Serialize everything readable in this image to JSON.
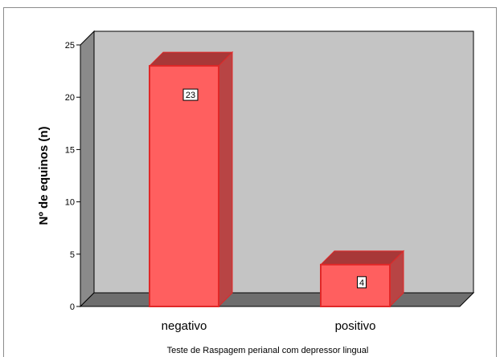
{
  "chart_data": {
    "type": "bar",
    "categories": [
      "negativo",
      "positivo"
    ],
    "values": [
      23,
      4
    ],
    "data_labels": [
      "23",
      "4"
    ],
    "xlabel": "Teste de Raspagem perianal com depressor lingual",
    "ylabel": "Nº de equinos (n)",
    "ylim": [
      0,
      25
    ],
    "yticks": [
      0,
      5,
      10,
      15,
      20,
      25
    ],
    "ytick_labels": [
      "0",
      "5",
      "10",
      "15",
      "20",
      "25"
    ],
    "style": "3d",
    "grid": false,
    "colors": {
      "bar_front": "#ff5f5f",
      "bar_top": "#a83838",
      "bar_side": "#b84444",
      "bar_edge": "#e02828",
      "wall": "#c4c4c4",
      "floor": "#6e6e6e",
      "left_wall": "#8a8a8a"
    }
  }
}
